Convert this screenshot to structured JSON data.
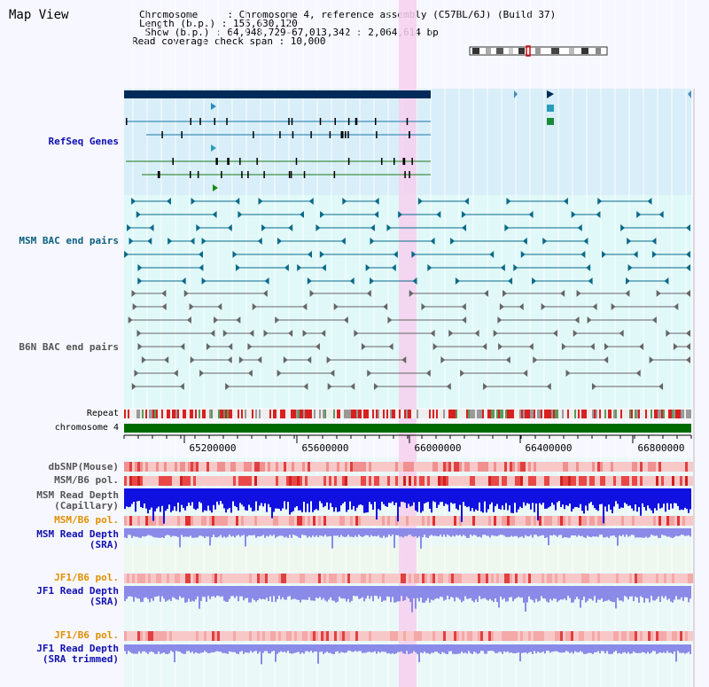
{
  "title": "Map View",
  "header": {
    "chromosome": "Chromosome     : Chromosome 4, reference assembly (C57BL/6J) (Build 37)",
    "length": "Length (b.p.) : 155,630,120",
    "show": " Show (b.p.) : 64,948,729-67,013,342 : 2,064,614 bp",
    "coverage": "Read coverage check span : 10,000"
  },
  "tracks": {
    "refseq": "RefSeq Genes",
    "msm_bac": "MSM BAC end pairs",
    "b6n_bac": "B6N BAC end pairs",
    "repeat": "Repeat",
    "chromosome": "chromosome 4",
    "dbsnp": "dbSNP(Mouse)",
    "msm_b6_pol": "MSM/B6 pol.",
    "msm_rd_cap_1": "MSM Read Depth",
    "msm_rd_cap_2": "(Capillary)",
    "msm_rd_sra_1": "MSM Read Depth",
    "msm_rd_sra_2": "(SRA)",
    "jf1_b6_pol": "JF1/B6 pol.",
    "jf1_rd_sra_1": "JF1 Read Depth",
    "jf1_rd_sra_2": "(SRA)",
    "jf1_rd_trim_1": "JF1 Read Depth",
    "jf1_rd_trim_2": "(SRA trimmed)"
  },
  "axis": {
    "ticks": [
      "65200000",
      "65600000",
      "66000000",
      "66400000",
      "66800000"
    ]
  },
  "colors": {
    "refseq_bg": "#d8eef8",
    "highlight": "#f6d0ef",
    "gene_blue": "#1a78a8",
    "gene_green": "#1a7a1a",
    "bac_msm": "#0a6a8a",
    "bac_b6n": "#666666",
    "chrom_bar": "#006a00",
    "depth_dark": "#1010e0",
    "depth_light": "#8a8ae8"
  }
}
